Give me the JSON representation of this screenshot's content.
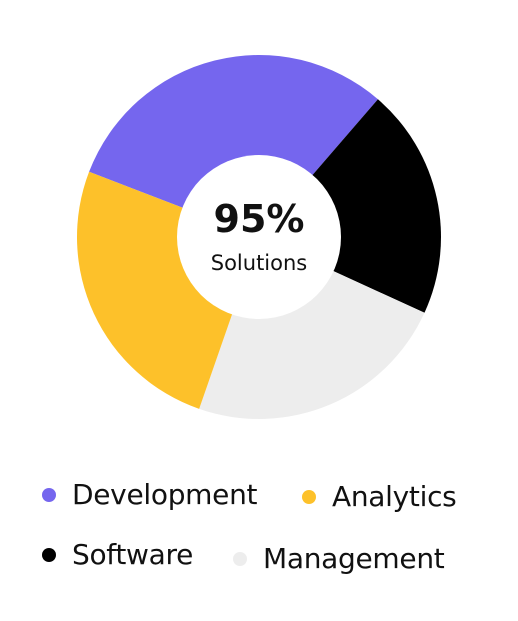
{
  "chart_data": {
    "type": "pie",
    "style": "donut",
    "center": {
      "value": "95%",
      "label": "Solutions"
    },
    "categories": [
      "Development",
      "Software",
      "Management",
      "Analytics"
    ],
    "values": [
      30.5,
      20.5,
      23.5,
      25.5
    ],
    "colors": [
      "#7566ee",
      "#000000",
      "#ededed",
      "#fdc12a"
    ],
    "legend_position": "bottom"
  },
  "legend": {
    "development": {
      "label": "Development",
      "color": "#7566ee"
    },
    "analytics": {
      "label": "Analytics",
      "color": "#fdc12a"
    },
    "software": {
      "label": "Software",
      "color": "#000000"
    },
    "management": {
      "label": "Management",
      "color": "#ededed"
    }
  }
}
